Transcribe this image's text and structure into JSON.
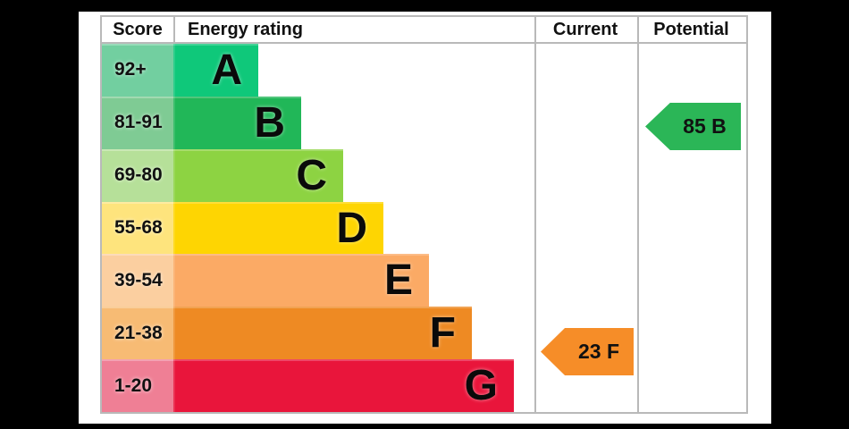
{
  "window": {
    "background_color": "#000000",
    "panel_color": "#ffffff",
    "grid_line_color": "#b9b9b9"
  },
  "table": {
    "headers": [
      "Score",
      "Energy rating",
      "Current",
      "Potential"
    ]
  },
  "chart_data": {
    "type": "bar",
    "title": "Energy rating (EPC band chart)",
    "columns": [
      "Score",
      "Energy rating",
      "Current",
      "Potential"
    ],
    "categories": [
      "A",
      "B",
      "C",
      "D",
      "E",
      "F",
      "G"
    ],
    "bands": [
      {
        "band": "A",
        "score_range": "92+",
        "bar_color": "#0fc87a",
        "score_tint": "#72cfa0",
        "width_pct": 23.5
      },
      {
        "band": "B",
        "score_range": "81-91",
        "bar_color": "#21b758",
        "score_tint": "#7fcb94",
        "width_pct": 35.4
      },
      {
        "band": "C",
        "score_range": "69-80",
        "bar_color": "#8dd342",
        "score_tint": "#b6e099",
        "width_pct": 47.0
      },
      {
        "band": "D",
        "score_range": "55-68",
        "bar_color": "#fed502",
        "score_tint": "#fee47d",
        "width_pct": 58.2
      },
      {
        "band": "E",
        "score_range": "39-54",
        "bar_color": "#fbaa65",
        "score_tint": "#fbcfa0",
        "width_pct": 70.8
      },
      {
        "band": "F",
        "score_range": "21-38",
        "bar_color": "#ee8a23",
        "score_tint": "#f7bb74",
        "width_pct": 82.7
      },
      {
        "band": "G",
        "score_range": "1-20",
        "bar_color": "#e9153b",
        "score_tint": "#ef7f95",
        "width_pct": 94.3
      }
    ],
    "markers": {
      "current": {
        "label": "23 F",
        "score": 23,
        "band": "F",
        "arrow_color": "#f68d28"
      },
      "potential": {
        "label": "85 B",
        "score": 85,
        "band": "B",
        "arrow_color": "#2bb657"
      }
    },
    "legend": "off",
    "grid": "column separators only"
  }
}
